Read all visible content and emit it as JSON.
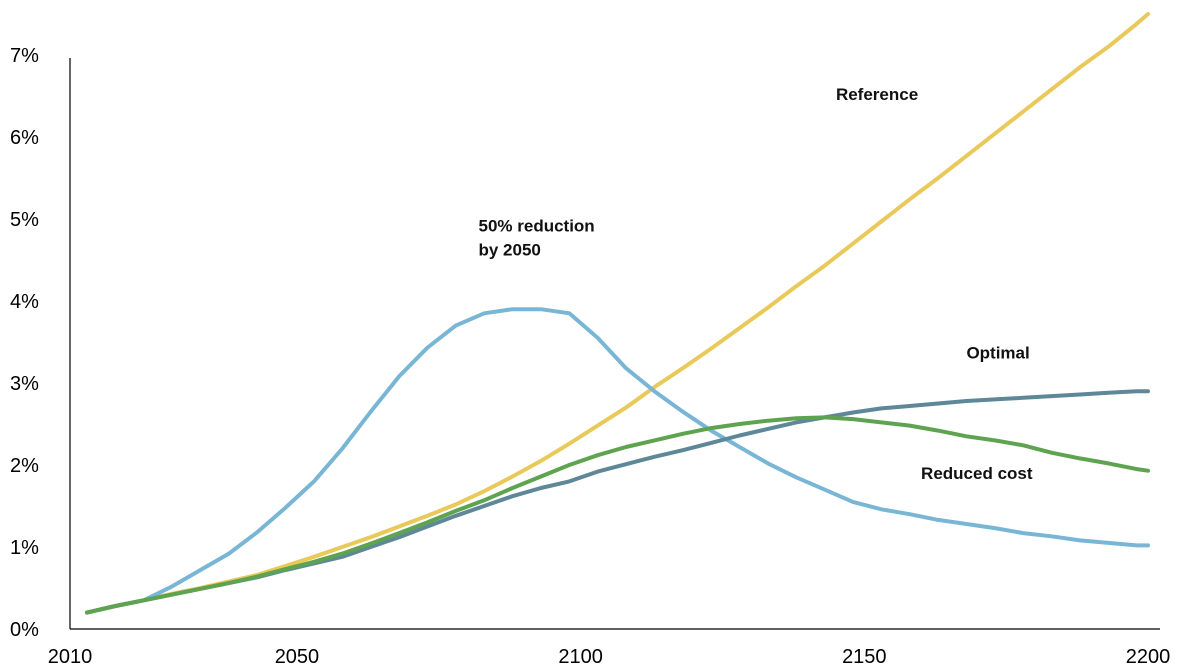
{
  "chart_data": {
    "type": "line",
    "title": "",
    "xlabel": "",
    "ylabel": "",
    "xlim": [
      2010,
      2200
    ],
    "ylim": [
      0,
      7.3
    ],
    "x_ticks": [
      {
        "value": 2010,
        "label": "2010"
      },
      {
        "value": 2050,
        "label": "2050"
      },
      {
        "value": 2100,
        "label": "2100"
      },
      {
        "value": 2150,
        "label": "2150"
      },
      {
        "value": 2200,
        "label": "2200"
      }
    ],
    "y_ticks": [
      {
        "value": 0,
        "label": "0%"
      },
      {
        "value": 1,
        "label": "1%"
      },
      {
        "value": 2,
        "label": "2%"
      },
      {
        "value": 3,
        "label": "3%"
      },
      {
        "value": 4,
        "label": "4%"
      },
      {
        "value": 5,
        "label": "5%"
      },
      {
        "value": 6,
        "label": "6%"
      },
      {
        "value": 7,
        "label": "7%"
      }
    ],
    "grid": false,
    "legend": "none",
    "series": [
      {
        "name": "Reference",
        "color": "#E8C95A",
        "x": [
          2013,
          2018,
          2023,
          2028,
          2033,
          2038,
          2043,
          2048,
          2053,
          2058,
          2063,
          2068,
          2073,
          2078,
          2083,
          2088,
          2093,
          2098,
          2103,
          2108,
          2113,
          2118,
          2123,
          2128,
          2133,
          2138,
          2143,
          2148,
          2153,
          2158,
          2163,
          2168,
          2173,
          2178,
          2183,
          2188,
          2193,
          2198,
          2200
        ],
        "y": [
          0.2,
          0.28,
          0.35,
          0.43,
          0.5,
          0.58,
          0.66,
          0.77,
          0.88,
          1.0,
          1.12,
          1.25,
          1.38,
          1.52,
          1.68,
          1.86,
          2.05,
          2.26,
          2.48,
          2.7,
          2.95,
          3.18,
          3.42,
          3.67,
          3.92,
          4.18,
          4.43,
          4.7,
          4.97,
          5.24,
          5.5,
          5.77,
          6.04,
          6.31,
          6.58,
          6.85,
          7.1,
          7.38,
          7.5
        ]
      },
      {
        "name": "50% reduction by 2050",
        "color": "#79B6D6",
        "x": [
          2013,
          2018,
          2023,
          2028,
          2033,
          2038,
          2043,
          2048,
          2053,
          2058,
          2063,
          2068,
          2073,
          2078,
          2083,
          2088,
          2093,
          2098,
          2103,
          2108,
          2113,
          2118,
          2123,
          2128,
          2133,
          2138,
          2143,
          2148,
          2153,
          2158,
          2163,
          2168,
          2173,
          2178,
          2183,
          2188,
          2193,
          2198,
          2200
        ],
        "y": [
          0.2,
          0.28,
          0.35,
          0.52,
          0.72,
          0.92,
          1.18,
          1.48,
          1.8,
          2.2,
          2.65,
          3.08,
          3.43,
          3.7,
          3.85,
          3.9,
          3.9,
          3.85,
          3.55,
          3.18,
          2.9,
          2.65,
          2.42,
          2.22,
          2.02,
          1.85,
          1.7,
          1.55,
          1.46,
          1.4,
          1.33,
          1.28,
          1.23,
          1.17,
          1.13,
          1.08,
          1.05,
          1.02,
          1.02
        ]
      },
      {
        "name": "Optimal",
        "color": "#5E8797",
        "x": [
          2013,
          2018,
          2023,
          2028,
          2033,
          2038,
          2043,
          2048,
          2053,
          2058,
          2063,
          2068,
          2073,
          2078,
          2083,
          2088,
          2093,
          2098,
          2103,
          2108,
          2113,
          2118,
          2123,
          2128,
          2133,
          2138,
          2143,
          2148,
          2153,
          2158,
          2163,
          2168,
          2173,
          2178,
          2183,
          2188,
          2193,
          2198,
          2200
        ],
        "y": [
          0.2,
          0.28,
          0.35,
          0.42,
          0.49,
          0.56,
          0.63,
          0.72,
          0.8,
          0.88,
          1.0,
          1.12,
          1.25,
          1.38,
          1.5,
          1.62,
          1.72,
          1.8,
          1.92,
          2.01,
          2.1,
          2.18,
          2.27,
          2.36,
          2.44,
          2.52,
          2.58,
          2.64,
          2.69,
          2.72,
          2.75,
          2.78,
          2.8,
          2.82,
          2.84,
          2.86,
          2.88,
          2.9,
          2.9
        ]
      },
      {
        "name": "Reduced cost",
        "color": "#5EA350",
        "x": [
          2013,
          2018,
          2023,
          2028,
          2033,
          2038,
          2043,
          2048,
          2053,
          2058,
          2063,
          2068,
          2073,
          2078,
          2083,
          2088,
          2093,
          2098,
          2103,
          2108,
          2113,
          2118,
          2123,
          2128,
          2133,
          2138,
          2143,
          2148,
          2153,
          2158,
          2163,
          2168,
          2173,
          2178,
          2183,
          2188,
          2193,
          2198,
          2200
        ],
        "y": [
          0.2,
          0.28,
          0.35,
          0.42,
          0.49,
          0.56,
          0.64,
          0.73,
          0.82,
          0.92,
          1.04,
          1.17,
          1.3,
          1.44,
          1.57,
          1.72,
          1.86,
          2.0,
          2.12,
          2.22,
          2.3,
          2.38,
          2.45,
          2.5,
          2.54,
          2.57,
          2.58,
          2.56,
          2.52,
          2.48,
          2.42,
          2.35,
          2.3,
          2.24,
          2.15,
          2.08,
          2.02,
          1.95,
          1.93
        ]
      }
    ],
    "annotations": [
      {
        "series": "Reference",
        "lines": [
          "Reference"
        ],
        "x": 2145,
        "y": 6.45
      },
      {
        "series": "50% reduction by 2050",
        "lines": [
          "50% reduction",
          "by 2050"
        ],
        "x": 2082,
        "y": 4.85
      },
      {
        "series": "Optimal",
        "lines": [
          "Optimal"
        ],
        "x": 2168,
        "y": 3.3
      },
      {
        "series": "Reduced cost",
        "lines": [
          "Reduced cost"
        ],
        "x": 2160,
        "y": 1.83
      }
    ]
  }
}
